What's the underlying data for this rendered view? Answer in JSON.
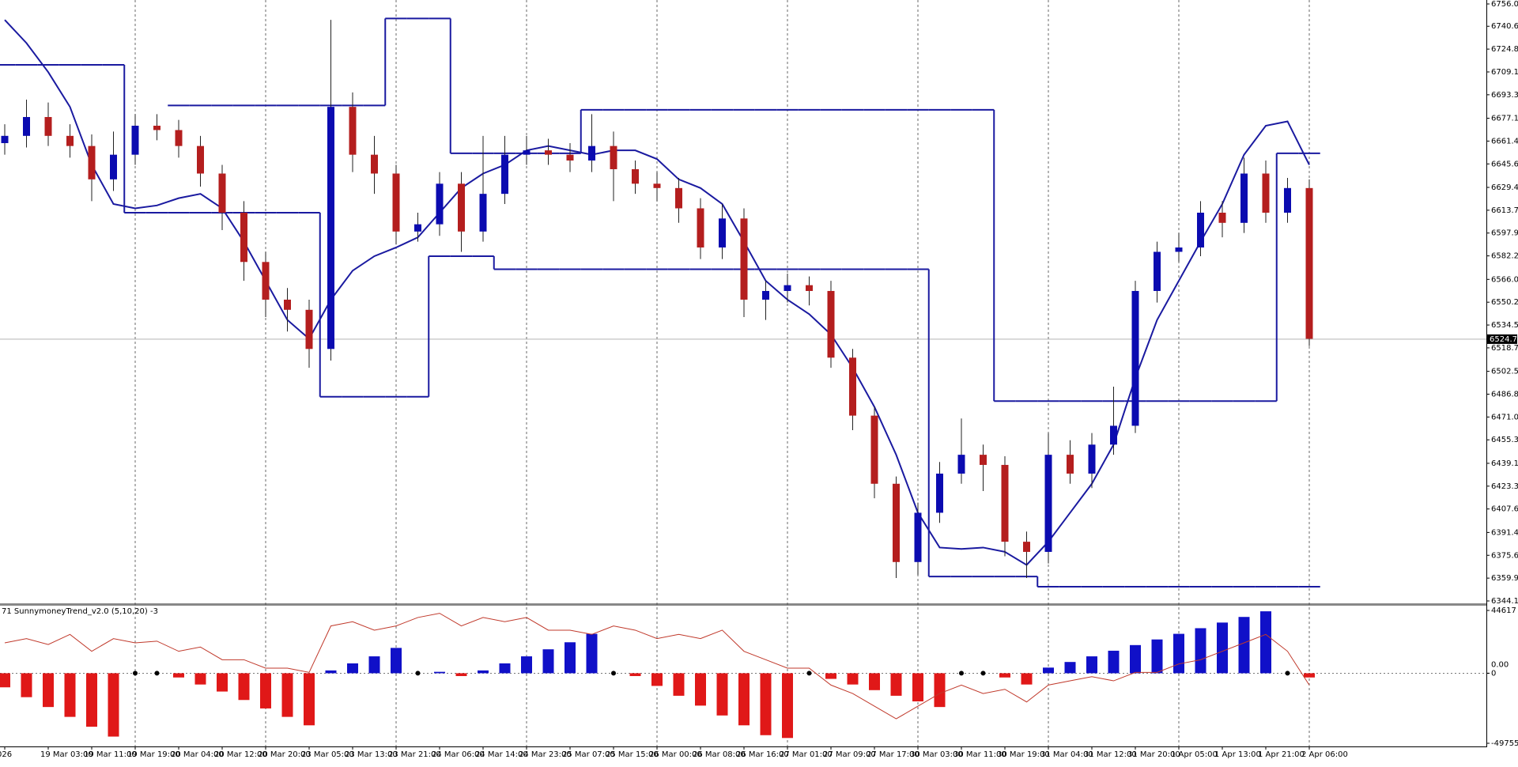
{
  "chart_data": [
    {
      "type": "candlestick",
      "x": [
        "026",
        null,
        "19 Mar 03:00",
        null,
        "19 Mar 11:00",
        null,
        "19 Mar 19:00",
        null,
        "20 Mar 04:00",
        null,
        "20 Mar 12:00",
        null,
        "20 Mar 20:00",
        null,
        "23 Mar 05:00",
        null,
        "23 Mar 13:00",
        null,
        "23 Mar 21:00",
        null,
        "24 Mar 06:00",
        null,
        "24 Mar 14:00",
        null,
        "24 Mar 23:00",
        null,
        "25 Mar 07:00",
        null,
        "25 Mar 15:00",
        null,
        "26 Mar 00:00",
        null,
        "26 Mar 08:00",
        null,
        "26 Mar 16:00",
        null,
        "27 Mar 01:00",
        null,
        "27 Mar 09:00",
        null,
        "27 Mar 17:00",
        null,
        "30 Mar 03:00",
        null,
        "30 Mar 11:00",
        null,
        "30 Mar 19:00",
        null,
        "31 Mar 04:00",
        null,
        "31 Mar 12:00",
        null,
        "31 Mar 20:00",
        null,
        "1 Apr 05:00",
        null,
        "1 Apr 13:00",
        null,
        "1 Apr 21:00",
        null,
        "2 Apr 06:00"
      ],
      "open": [
        6660,
        6665,
        6678,
        6665,
        6658,
        6635,
        6652,
        6672,
        6669,
        6658,
        6639,
        6612,
        6578,
        6552,
        6545,
        6518,
        6685,
        6652,
        6639,
        6599,
        6604,
        6632,
        6599,
        6625,
        6652,
        6655,
        6652,
        6648,
        6658,
        6642,
        6632,
        6629,
        6615,
        6588,
        6608,
        6552,
        6558,
        6562,
        6558,
        6512,
        6472,
        6425,
        6371,
        6405,
        6432,
        6445,
        6438,
        6385,
        6378,
        6445,
        6432,
        6452,
        6465,
        6558,
        6585,
        6588,
        6612,
        6605,
        6639,
        6612,
        6629
      ],
      "high": [
        6673,
        6690,
        6688,
        6673,
        6666,
        6668,
        6680,
        6680,
        6676,
        6665,
        6645,
        6620,
        6585,
        6560,
        6552,
        6745,
        6695,
        6665,
        6645,
        6612,
        6640,
        6640,
        6665,
        6665,
        6665,
        6663,
        6660,
        6680,
        6668,
        6648,
        6640,
        6636,
        6622,
        6618,
        6615,
        6565,
        6570,
        6568,
        6565,
        6518,
        6478,
        6430,
        6412,
        6440,
        6470,
        6452,
        6444,
        6392,
        6460,
        6455,
        6460,
        6492,
        6565,
        6592,
        6598,
        6620,
        6620,
        6650,
        6648,
        6636,
        6635
      ],
      "low": [
        6652,
        6657,
        6658,
        6650,
        6620,
        6627,
        6645,
        6662,
        6650,
        6630,
        6600,
        6565,
        6540,
        6530,
        6505,
        6510,
        6640,
        6625,
        6590,
        6592,
        6596,
        6585,
        6592,
        6618,
        6645,
        6645,
        6640,
        6640,
        6620,
        6625,
        6620,
        6605,
        6580,
        6580,
        6540,
        6538,
        6550,
        6548,
        6505,
        6462,
        6415,
        6360,
        6362,
        6398,
        6425,
        6420,
        6375,
        6360,
        6370,
        6425,
        6422,
        6445,
        6460,
        6550,
        6578,
        6582,
        6595,
        6598,
        6605,
        6605,
        6520
      ],
      "close": [
        6665,
        6678,
        6665,
        6658,
        6635,
        6652,
        6672,
        6669,
        6658,
        6639,
        6612,
        6578,
        6552,
        6545,
        6518,
        6685,
        6652,
        6639,
        6599,
        6604,
        6632,
        6599,
        6625,
        6652,
        6655,
        6652,
        6648,
        6658,
        6642,
        6632,
        6629,
        6615,
        6588,
        6608,
        6552,
        6558,
        6562,
        6558,
        6512,
        6472,
        6425,
        6371,
        6405,
        6432,
        6445,
        6438,
        6385,
        6378,
        6445,
        6432,
        6452,
        6465,
        6558,
        6585,
        6588,
        6612,
        6605,
        6639,
        6612,
        6629,
        6525
      ],
      "bull_color": "#0b0bb0",
      "bear_color": "#b41e1e",
      "series": [
        {
          "style": "line",
          "color": "#1a1aa0",
          "values": [
            6745,
            6729,
            6709,
            6685,
            6645,
            6618,
            6615,
            6617,
            6622,
            6625,
            6615,
            6592,
            6565,
            6538,
            6525,
            6552,
            6572,
            6582,
            6588,
            6595,
            6612,
            6629,
            6639,
            6645,
            6655,
            6658,
            6655,
            6652,
            6655,
            6655,
            6649,
            6635,
            6629,
            6618,
            6592,
            6565,
            6552,
            6542,
            6528,
            6505,
            6478,
            6445,
            6405,
            6381,
            6380,
            6381,
            6378,
            6369,
            6385,
            6405,
            6425,
            6452,
            6498,
            6538,
            6565,
            6592,
            6618,
            6652,
            6672,
            6675,
            6645
          ]
        },
        {
          "style": "step",
          "color": "#1a1aa0",
          "values": [
            null,
            null,
            null,
            null,
            null,
            null,
            null,
            null,
            6686,
            6686,
            6686,
            6686,
            6686,
            6686,
            6686,
            6686,
            6686,
            6686,
            6746,
            6746,
            6746,
            6653,
            6653,
            6653,
            6653,
            6653,
            6653,
            6683,
            6683,
            6683,
            6683,
            6683,
            6683,
            6683,
            6683,
            6683,
            6683,
            6683,
            6683,
            6683,
            6683,
            6683,
            6683,
            6683,
            6683,
            6683,
            6482,
            6482,
            6482,
            6482,
            6482,
            6482,
            6482,
            6482,
            6482,
            6482,
            6482,
            6482,
            6482,
            6653,
            6653
          ]
        },
        {
          "style": "step",
          "color": "#1a1aa0",
          "values": [
            6714,
            6714,
            6714,
            6714,
            6714,
            6714,
            6612,
            6612,
            6612,
            6612,
            6612,
            6612,
            6612,
            6612,
            6612,
            6485,
            6485,
            6485,
            6485,
            6485,
            6582,
            6582,
            6582,
            6573,
            6573,
            6573,
            6573,
            6573,
            6573,
            6573,
            6573,
            6573,
            6573,
            6573,
            6573,
            6573,
            6573,
            6573,
            6573,
            6573,
            6573,
            6573,
            6573,
            6361,
            6361,
            6361,
            6361,
            6361,
            6354,
            6354,
            6354,
            6354,
            6354,
            6354,
            6354,
            6354,
            6354,
            6354,
            6354,
            6354,
            6354
          ]
        }
      ],
      "ylim": [
        6344.15,
        6756.0
      ],
      "yticks": [
        {
          "value": 6756.0,
          "label": "6756.00"
        },
        {
          "value": 6740.6,
          "label": "6740.60"
        },
        {
          "value": 6724.85,
          "label": "6724.85"
        },
        {
          "value": 6709.1,
          "label": "6709.10"
        },
        {
          "value": 6693.35,
          "label": "6693.35"
        },
        {
          "value": 6677.15,
          "label": "6677.15"
        },
        {
          "value": 6661.4,
          "label": "6661.40"
        },
        {
          "value": 6645.65,
          "label": "6645.65"
        },
        {
          "value": 6629.45,
          "label": "6629.45"
        },
        {
          "value": 6613.7,
          "label": "6613.70"
        },
        {
          "value": 6597.95,
          "label": "6597.95"
        },
        {
          "value": 6582.2,
          "label": "6582.20"
        },
        {
          "value": 6566.0,
          "label": "6566.00"
        },
        {
          "value": 6550.25,
          "label": "6550.25"
        },
        {
          "value": 6534.5,
          "label": "6534.50"
        },
        {
          "value": 6518.75,
          "label": "6518.75"
        },
        {
          "value": 6502.55,
          "label": "6502.55"
        },
        {
          "value": 6486.8,
          "label": "6486.80"
        },
        {
          "value": 6471.05,
          "label": "6471.05"
        },
        {
          "value": 6455.3,
          "label": "6455.30"
        },
        {
          "value": 6439.1,
          "label": "6439.10"
        },
        {
          "value": 6423.35,
          "label": "6423.35"
        },
        {
          "value": 6407.6,
          "label": "6407.60"
        },
        {
          "value": 6391.4,
          "label": "6391.40"
        },
        {
          "value": 6375.65,
          "label": "6375.65"
        },
        {
          "value": 6359.9,
          "label": "6359.90"
        },
        {
          "value": 6344.15,
          "label": "6344.15"
        }
      ],
      "current_price": {
        "value": 6524.75,
        "label": "6524.75"
      },
      "grid": true
    },
    {
      "type": "bar",
      "title": "71  SunnymoneyTrend_v2.0 (5,10,20) -3",
      "values": [
        -10000,
        -17000,
        -24000,
        -31000,
        -38000,
        -45000,
        0,
        0,
        -3000,
        -8000,
        -13000,
        -19000,
        -25000,
        -31000,
        -37000,
        2000,
        7000,
        12000,
        18000,
        0,
        1000,
        -2000,
        2000,
        7000,
        12000,
        17000,
        22000,
        28000,
        0,
        -2000,
        -9000,
        -16000,
        -23000,
        -30000,
        -37000,
        -44000,
        -46000,
        0,
        -4000,
        -8000,
        -12000,
        -16000,
        -20000,
        -24000,
        0,
        0,
        -3000,
        -8000,
        4000,
        8000,
        12000,
        16000,
        20000,
        24000,
        28000,
        32000,
        36000,
        40000,
        44000,
        0,
        -3000
      ],
      "positive_color": "#1010c8",
      "negative_color": "#e01818",
      "series": [
        {
          "color": "#c0392b",
          "values": [
            21600,
            24600,
            20400,
            27600,
            15600,
            24600,
            21600,
            22800,
            15600,
            18600,
            9600,
            9600,
            3600,
            3600,
            600,
            33600,
            36600,
            30600,
            33600,
            39600,
            42600,
            33600,
            39600,
            36600,
            39600,
            30600,
            30600,
            27600,
            33600,
            30600,
            24600,
            27600,
            24600,
            30600,
            15600,
            9600,
            3600,
            3600,
            -8400,
            -14400,
            -23400,
            -32400,
            -23400,
            -14400,
            -8400,
            -14400,
            -11400,
            -20400,
            -8400,
            -5400,
            -2400,
            -5400,
            600,
            600,
            6600,
            9600,
            15600,
            21600,
            27600,
            15600,
            -8400
          ]
        }
      ],
      "ylim": [
        -49755,
        44617
      ],
      "yticks": [
        44617,
        {
          "value": 0,
          "label": "0.00"
        },
        0,
        -49755
      ]
    }
  ]
}
